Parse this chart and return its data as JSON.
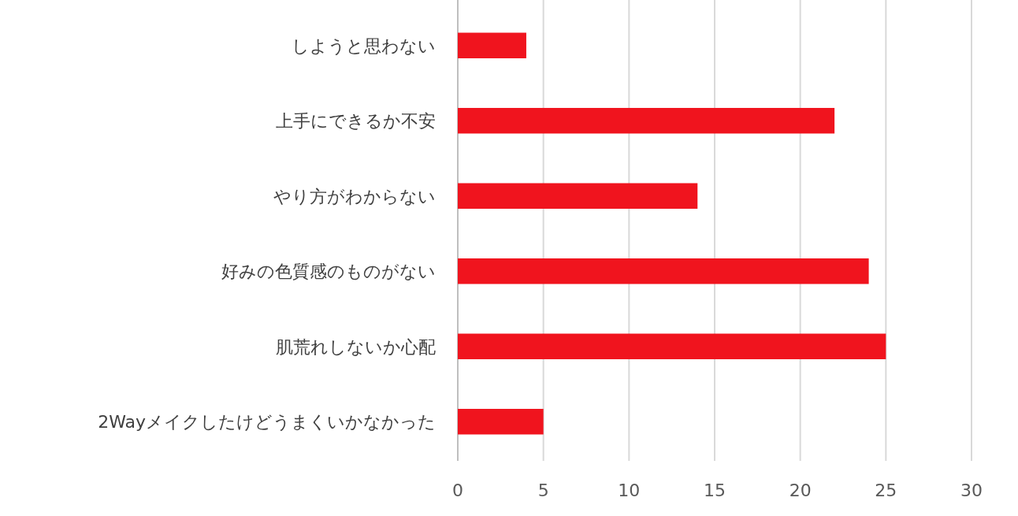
{
  "chart_data": {
    "type": "bar",
    "orientation": "horizontal",
    "categories": [
      "しようと思わない",
      "上手にできるか不安",
      "やり方がわからない",
      "好みの色質感のものがない",
      "肌荒れしないか心配",
      "2Wayメイクしたけどうまくいかなかった"
    ],
    "values": [
      4,
      22,
      14,
      24,
      25,
      5
    ],
    "color": "#f0141e",
    "xlim": [
      0,
      30
    ],
    "xticks": [
      0,
      5,
      10,
      15,
      20,
      25,
      30
    ],
    "grid": "x"
  }
}
